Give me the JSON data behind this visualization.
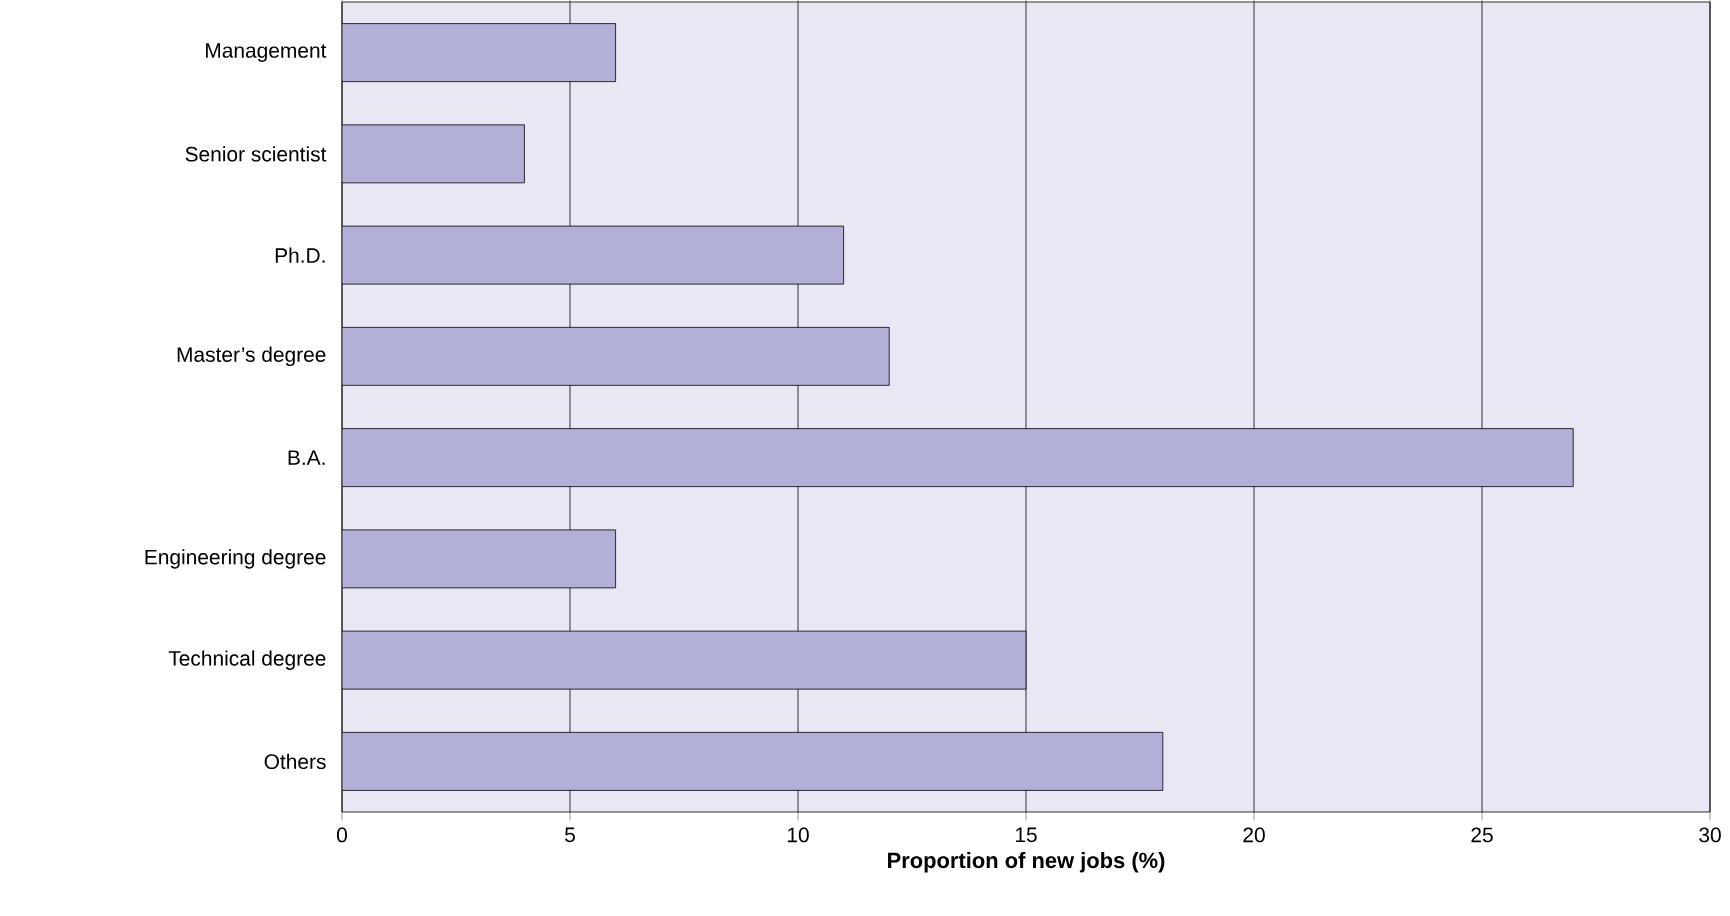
{
  "chart_data": {
    "type": "bar",
    "orientation": "horizontal",
    "xlabel": "Proportion of new jobs (%)",
    "categories": [
      "Management",
      "Senior scientist",
      "Ph.D.",
      "Master’s degree",
      "B.A.",
      "Engineering degree",
      "Technical degree",
      "Others"
    ],
    "values": [
      6,
      4,
      11,
      12,
      27,
      6,
      15,
      18
    ],
    "color": "#b3b0d8",
    "xlim": [
      0,
      30
    ],
    "xticks": [
      0,
      5,
      10,
      15,
      20,
      25,
      30
    ],
    "grid": "x"
  }
}
